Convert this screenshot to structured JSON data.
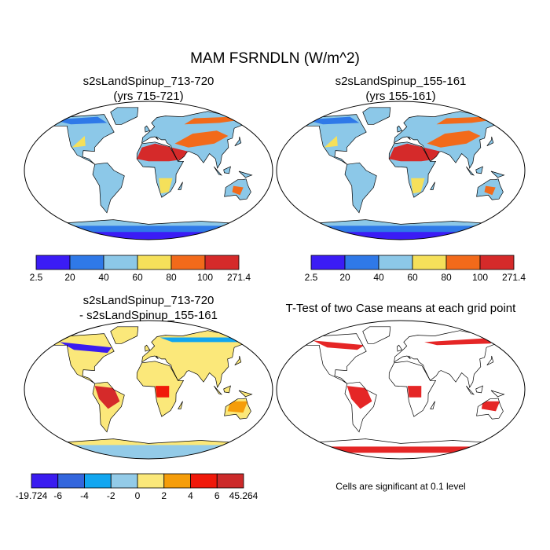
{
  "title": "MAM FSRNDLN (W/m^2)",
  "panels": [
    {
      "title": "s2sLandSpinup_713-720",
      "subtitle": "(yrs 715-721)",
      "colorbar": {
        "colors": [
          "#3b1cf5",
          "#2f79e8",
          "#8cc8e8",
          "#f5e05a",
          "#f26a1a",
          "#d52a2a"
        ],
        "ticks": [
          2.5,
          20,
          40,
          60,
          80,
          100,
          271.4
        ]
      }
    },
    {
      "title": "s2sLandSpinup_155-161",
      "subtitle": "(yrs 155-161)",
      "colorbar": {
        "colors": [
          "#3b1cf5",
          "#2f79e8",
          "#8cc8e8",
          "#f5e05a",
          "#f26a1a",
          "#d52a2a"
        ],
        "ticks": [
          2.5,
          20,
          40,
          60,
          80,
          100,
          271.4
        ]
      }
    },
    {
      "title": "s2sLandSpinup_713-720",
      "subtitle": "- s2sLandSpinup_155-161",
      "colorbar": {
        "colors": [
          "#3a1cf0",
          "#3366dd",
          "#12a6f0",
          "#93cbe8",
          "#fbe87a",
          "#f59d0a",
          "#f0190a",
          "#cc2a2a"
        ],
        "ticks": [
          -19.724,
          -6,
          -4,
          -2,
          0,
          2,
          4,
          6,
          45.264
        ]
      }
    },
    {
      "title": "T-Test of two Case means at each grid point",
      "note": "Cells are significant at 0.1 level"
    }
  ]
}
